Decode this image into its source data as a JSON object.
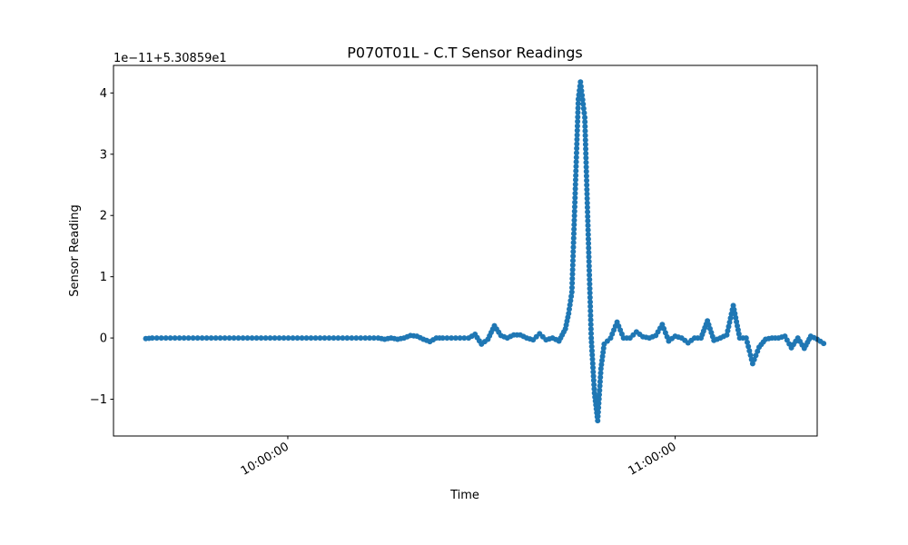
{
  "chart_data": {
    "type": "line",
    "title": "P070T01L - C.T Sensor Readings",
    "xlabel": "Time",
    "ylabel": "Sensor Reading",
    "offset_text": "1e−11+5.30859e1",
    "x_axis": {
      "kind": "time",
      "ticks": [
        {
          "time": "10:00:00",
          "label": "10:00:00"
        },
        {
          "time": "11:00:00",
          "label": "11:00:00"
        }
      ],
      "range": [
        "09:33:00",
        "11:22:00"
      ]
    },
    "y_axis": {
      "range": [
        -1.6,
        4.45
      ],
      "ticks": [
        {
          "value": -1,
          "label": "−1"
        },
        {
          "value": 0,
          "label": "0"
        },
        {
          "value": 1,
          "label": "1"
        },
        {
          "value": 2,
          "label": "2"
        },
        {
          "value": 3,
          "label": "3"
        },
        {
          "value": 4,
          "label": "4"
        }
      ]
    },
    "grid": false,
    "legend": "none",
    "series": [
      {
        "color": "#1f77b4",
        "marker": "circle",
        "keypoints": [
          [
            "09:38:00",
            -0.01
          ],
          [
            "09:39:00",
            0.0
          ],
          [
            "10:05:00",
            0.0
          ],
          [
            "10:12:00",
            0.0
          ],
          [
            "10:14:00",
            0.0
          ],
          [
            "10:15:00",
            -0.02
          ],
          [
            "10:16:00",
            0.0
          ],
          [
            "10:17:00",
            -0.02
          ],
          [
            "10:18:00",
            0.0
          ],
          [
            "10:19:00",
            0.04
          ],
          [
            "10:20:00",
            0.03
          ],
          [
            "10:21:00",
            -0.02
          ],
          [
            "10:22:00",
            -0.06
          ],
          [
            "10:23:00",
            0.0
          ],
          [
            "10:24:00",
            0.0
          ],
          [
            "10:28:00",
            0.0
          ],
          [
            "10:29:00",
            0.06
          ],
          [
            "10:30:00",
            -0.1
          ],
          [
            "10:31:00",
            -0.02
          ],
          [
            "10:32:00",
            0.2
          ],
          [
            "10:33:00",
            0.04
          ],
          [
            "10:34:00",
            0.0
          ],
          [
            "10:35:00",
            0.05
          ],
          [
            "10:36:00",
            0.05
          ],
          [
            "10:37:00",
            0.0
          ],
          [
            "10:38:00",
            -0.03
          ],
          [
            "10:39:00",
            0.07
          ],
          [
            "10:40:00",
            -0.03
          ],
          [
            "10:41:00",
            0.0
          ],
          [
            "10:42:00",
            -0.05
          ],
          [
            "10:43:00",
            0.15
          ],
          [
            "10:43:30",
            0.4
          ],
          [
            "10:44:00",
            0.75
          ],
          [
            "10:45:00",
            3.9
          ],
          [
            "10:45:20",
            4.18
          ],
          [
            "10:46:00",
            3.6
          ],
          [
            "10:47:00",
            0.0
          ],
          [
            "10:47:30",
            -0.9
          ],
          [
            "10:48:00",
            -1.35
          ],
          [
            "10:48:30",
            -0.5
          ],
          [
            "10:49:00",
            -0.1
          ],
          [
            "10:50:00",
            0.0
          ],
          [
            "10:51:00",
            0.26
          ],
          [
            "10:52:00",
            0.0
          ],
          [
            "10:53:00",
            0.0
          ],
          [
            "10:54:00",
            0.1
          ],
          [
            "10:55:00",
            0.02
          ],
          [
            "10:56:00",
            0.0
          ],
          [
            "10:57:00",
            0.04
          ],
          [
            "10:58:00",
            0.22
          ],
          [
            "10:59:00",
            -0.05
          ],
          [
            "11:00:00",
            0.03
          ],
          [
            "11:01:00",
            0.0
          ],
          [
            "11:02:00",
            -0.08
          ],
          [
            "11:03:00",
            0.0
          ],
          [
            "11:04:00",
            0.0
          ],
          [
            "11:05:00",
            0.28
          ],
          [
            "11:06:00",
            -0.04
          ],
          [
            "11:07:00",
            0.0
          ],
          [
            "11:08:00",
            0.05
          ],
          [
            "11:09:00",
            0.53
          ],
          [
            "11:10:00",
            0.0
          ],
          [
            "11:11:00",
            0.0
          ],
          [
            "11:12:00",
            -0.42
          ],
          [
            "11:13:00",
            -0.15
          ],
          [
            "11:14:00",
            -0.02
          ],
          [
            "11:15:00",
            0.0
          ],
          [
            "11:16:00",
            0.0
          ],
          [
            "11:17:00",
            0.03
          ],
          [
            "11:18:00",
            -0.16
          ],
          [
            "11:19:00",
            0.0
          ],
          [
            "11:20:00",
            -0.17
          ],
          [
            "11:21:00",
            0.03
          ],
          [
            "11:22:00",
            -0.02
          ],
          [
            "11:23:00",
            -0.09
          ]
        ]
      }
    ]
  }
}
